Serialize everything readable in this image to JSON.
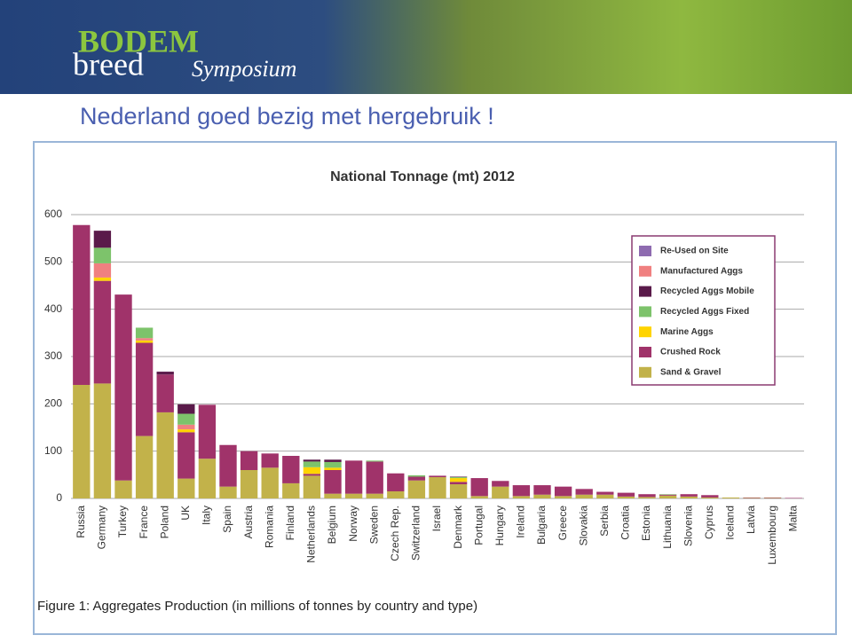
{
  "header": {
    "logo_top": "BODEM",
    "logo_left": "breed",
    "logo_right": "Symposium"
  },
  "slide_title": "Nederland goed bezig met hergebruik !",
  "chart_data": {
    "type": "stacked_bar",
    "title": "National Tonnage (mt) 2012",
    "caption": "Figure 1: Aggregates Production (in millions of tonnes by country and type)",
    "categories": [
      "Russia",
      "Germany",
      "Turkey",
      "France",
      "Poland",
      "UK",
      "Italy",
      "Spain",
      "Austria",
      "Romania",
      "Finland",
      "Netherlands",
      "Belgium",
      "Norway",
      "Sweden",
      "Czech Rep.",
      "Switzerland",
      "Israel",
      "Denmark",
      "Portugal",
      "Hungary",
      "Ireland",
      "Bulgaria",
      "Greece",
      "Slovakia",
      "Serbia",
      "Croatia",
      "Estonia",
      "Lithuania",
      "Slovenia",
      "Cyprus",
      "Iceland",
      "Latvia",
      "Luxembourg",
      "Malta"
    ],
    "series": [
      {
        "name": "Sand & Gravel",
        "color": "#c2b24a",
        "values": [
          240,
          243,
          38,
          132,
          182,
          42,
          84,
          25,
          60,
          65,
          32,
          48,
          10,
          10,
          10,
          15,
          38,
          45,
          30,
          5,
          25,
          5,
          8,
          5,
          8,
          8,
          4,
          3,
          6,
          4,
          2,
          2,
          1,
          1,
          0
        ]
      },
      {
        "name": "Crushed Rock",
        "color": "#a0336a",
        "values": [
          338,
          217,
          393,
          197,
          80,
          98,
          114,
          88,
          40,
          30,
          58,
          4,
          50,
          70,
          68,
          38,
          8,
          3,
          5,
          38,
          12,
          23,
          20,
          20,
          12,
          6,
          8,
          6,
          2,
          5,
          5,
          0,
          1,
          1,
          1
        ]
      },
      {
        "name": "Marine Aggs",
        "color": "#ffd400",
        "values": [
          0,
          7,
          0,
          5,
          0,
          6,
          0,
          0,
          0,
          0,
          0,
          14,
          5,
          0,
          0,
          0,
          0,
          0,
          8,
          0,
          0,
          0,
          0,
          0,
          0,
          0,
          0,
          0,
          0,
          0,
          0,
          0,
          0,
          0,
          0
        ]
      },
      {
        "name": "Recycled Aggs Fixed",
        "color": "#7dc36b",
        "values": [
          0,
          33,
          0,
          22,
          0,
          23,
          0,
          0,
          0,
          0,
          0,
          12,
          12,
          0,
          2,
          0,
          3,
          0,
          2,
          0,
          0,
          0,
          0,
          0,
          0,
          0,
          0,
          0,
          1,
          0,
          0,
          0,
          0,
          0,
          0
        ]
      },
      {
        "name": "Recycled Aggs Mobile",
        "color": "#5a1a4a",
        "values": [
          0,
          36,
          0,
          0,
          6,
          20,
          0,
          0,
          0,
          0,
          0,
          4,
          5,
          0,
          0,
          0,
          0,
          0,
          1,
          0,
          0,
          0,
          0,
          0,
          0,
          0,
          0,
          0,
          0,
          0,
          0,
          0,
          0,
          0,
          0
        ]
      },
      {
        "name": "Manufactured Aggs",
        "color": "#f08080",
        "values": [
          0,
          30,
          0,
          5,
          0,
          10,
          0,
          0,
          0,
          0,
          0,
          0,
          0,
          0,
          0,
          0,
          0,
          0,
          0,
          0,
          0,
          0,
          0,
          0,
          0,
          0,
          0,
          0,
          0,
          0,
          0,
          0,
          0,
          0,
          0
        ]
      },
      {
        "name": "Re-Used on Site",
        "color": "#8e6bb0",
        "values": [
          0,
          0,
          0,
          0,
          0,
          0,
          0,
          0,
          0,
          0,
          0,
          0,
          0,
          0,
          0,
          0,
          0,
          0,
          0,
          0,
          0,
          0,
          0,
          0,
          0,
          0,
          0,
          0,
          0,
          0,
          0,
          0,
          0,
          0,
          0
        ]
      }
    ],
    "ylim": [
      0,
      600
    ],
    "yticks": [
      0,
      100,
      200,
      300,
      400,
      500,
      600
    ],
    "grid": true
  }
}
